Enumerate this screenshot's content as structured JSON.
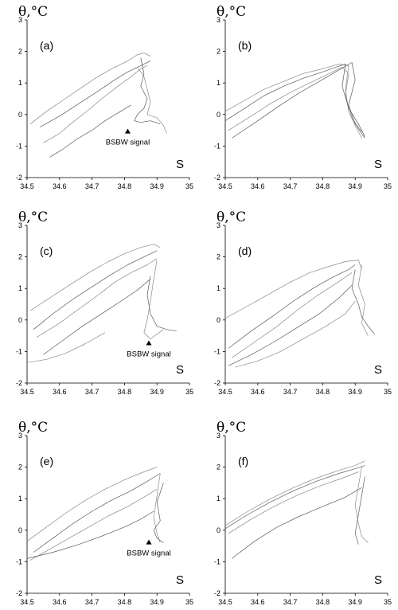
{
  "chart_data": [
    {
      "type": "line",
      "panel_label": "(a)",
      "ylabel": "θ,°C",
      "xlabel": "S",
      "xlim": [
        34.5,
        35.0
      ],
      "ylim": [
        -2,
        3
      ],
      "xticks": [
        "34.5",
        "34.6",
        "34.7",
        "34.8",
        "34.9",
        "35"
      ],
      "yticks": [
        "-2",
        "-1",
        "0",
        "1",
        "2",
        "3"
      ],
      "annotation": {
        "text": "BSBW signal",
        "x": 34.81,
        "y": -0.45
      },
      "series": [
        {
          "x": [
            34.51,
            34.56,
            34.61,
            34.66,
            34.71,
            34.76,
            34.81,
            34.84,
            34.86,
            34.88
          ],
          "y": [
            -0.3,
            0.1,
            0.45,
            0.8,
            1.15,
            1.45,
            1.7,
            1.9,
            1.95,
            1.85
          ]
        },
        {
          "x": [
            34.54,
            34.6,
            34.66,
            34.72,
            34.77,
            34.81,
            34.84,
            34.86,
            34.88
          ],
          "y": [
            -0.4,
            -0.05,
            0.35,
            0.75,
            1.1,
            1.35,
            1.5,
            1.6,
            1.7
          ]
        },
        {
          "x": [
            34.55,
            34.6,
            34.64,
            34.69,
            34.73,
            34.78,
            34.82,
            34.85,
            34.87
          ],
          "y": [
            -0.9,
            -0.6,
            -0.25,
            0.15,
            0.5,
            0.9,
            1.2,
            1.45,
            1.55
          ]
        },
        {
          "x": [
            34.57,
            34.61,
            34.65,
            34.7,
            34.74,
            34.78,
            34.82
          ],
          "y": [
            -1.35,
            -1.1,
            -0.8,
            -0.5,
            -0.2,
            0.05,
            0.3
          ]
        },
        {
          "x": [
            34.84,
            34.86,
            34.87,
            34.88,
            34.87,
            34.9,
            34.92,
            34.93
          ],
          "y": [
            1.5,
            1.2,
            0.8,
            0.4,
            0.0,
            -0.1,
            -0.35,
            -0.6
          ]
        },
        {
          "x": [
            34.85,
            34.86,
            34.85,
            34.87,
            34.86,
            34.84,
            34.83,
            34.85,
            34.88,
            34.91
          ],
          "y": [
            1.8,
            1.3,
            0.9,
            0.5,
            0.2,
            0.0,
            -0.2,
            -0.25,
            -0.2,
            -0.3
          ]
        }
      ]
    },
    {
      "type": "line",
      "panel_label": "(b)",
      "ylabel": "θ,°C",
      "xlabel": "S",
      "xlim": [
        34.5,
        35.0
      ],
      "ylim": [
        -2,
        3
      ],
      "xticks": [
        "34.5",
        "34.6",
        "34.7",
        "34.8",
        "34.9",
        "35"
      ],
      "yticks": [
        "-2",
        "-1",
        "0",
        "1",
        "2",
        "3"
      ],
      "series": [
        {
          "x": [
            34.5,
            34.56,
            34.62,
            34.68,
            34.74,
            34.8,
            34.85,
            34.88,
            34.87,
            34.88,
            34.9,
            34.92
          ],
          "y": [
            0.1,
            0.45,
            0.8,
            1.05,
            1.3,
            1.45,
            1.6,
            1.55,
            0.8,
            0.1,
            -0.35,
            -0.75
          ]
        },
        {
          "x": [
            34.5,
            34.56,
            34.62,
            34.68,
            34.74,
            34.8,
            34.84,
            34.87,
            34.86,
            34.88,
            34.91,
            34.93
          ],
          "y": [
            -0.2,
            0.2,
            0.6,
            0.9,
            1.15,
            1.35,
            1.5,
            1.6,
            0.9,
            0.2,
            -0.3,
            -0.7
          ]
        },
        {
          "x": [
            34.51,
            34.58,
            34.64,
            34.7,
            34.76,
            34.81,
            34.86,
            34.88,
            34.87,
            34.89,
            34.92
          ],
          "y": [
            -0.5,
            -0.05,
            0.35,
            0.7,
            1.0,
            1.25,
            1.5,
            1.3,
            0.6,
            -0.1,
            -0.55
          ]
        },
        {
          "x": [
            34.52,
            34.6,
            34.67,
            34.73,
            34.79,
            34.84,
            34.89,
            34.9,
            34.88,
            34.9,
            34.93
          ],
          "y": [
            -0.75,
            -0.2,
            0.3,
            0.7,
            1.05,
            1.35,
            1.65,
            1.1,
            0.3,
            -0.3,
            -0.75
          ]
        }
      ]
    },
    {
      "type": "line",
      "panel_label": "(c)",
      "ylabel": "θ,°C",
      "xlabel": "S",
      "xlim": [
        34.5,
        35.0
      ],
      "ylim": [
        -2,
        3
      ],
      "xticks": [
        "34.5",
        "34.6",
        "34.7",
        "34.8",
        "34.9",
        "35"
      ],
      "yticks": [
        "-2",
        "-1",
        "0",
        "1",
        "2",
        "3"
      ],
      "annotation": {
        "text": "BSBW signal",
        "x": 34.875,
        "y": -0.65
      },
      "series": [
        {
          "x": [
            34.51,
            34.57,
            34.63,
            34.69,
            34.75,
            34.8,
            34.85,
            34.89,
            34.91
          ],
          "y": [
            0.3,
            0.7,
            1.1,
            1.5,
            1.85,
            2.1,
            2.3,
            2.4,
            2.3
          ]
        },
        {
          "x": [
            34.52,
            34.58,
            34.64,
            34.7,
            34.76,
            34.81,
            34.86,
            34.9
          ],
          "y": [
            -0.3,
            0.2,
            0.65,
            1.05,
            1.45,
            1.75,
            2.0,
            2.2
          ]
        },
        {
          "x": [
            34.53,
            34.6,
            34.66,
            34.72,
            34.77,
            34.82,
            34.87,
            34.9
          ],
          "y": [
            -0.55,
            -0.1,
            0.35,
            0.8,
            1.2,
            1.5,
            1.75,
            1.95
          ]
        },
        {
          "x": [
            34.55,
            34.61,
            34.67,
            34.73,
            34.79,
            34.84,
            34.88
          ],
          "y": [
            -1.1,
            -0.65,
            -0.2,
            0.2,
            0.6,
            0.95,
            1.3
          ]
        },
        {
          "x": [
            34.5,
            34.56,
            34.62,
            34.68,
            34.74
          ],
          "y": [
            -1.35,
            -1.25,
            -1.05,
            -0.75,
            -0.4
          ]
        },
        {
          "x": [
            34.88,
            34.87,
            34.88,
            34.9,
            34.93,
            34.96
          ],
          "y": [
            1.4,
            0.8,
            0.2,
            -0.2,
            -0.3,
            -0.35
          ]
        },
        {
          "x": [
            34.9,
            34.89,
            34.88,
            34.87,
            34.86,
            34.88,
            34.92
          ],
          "y": [
            1.9,
            1.3,
            0.6,
            0.0,
            -0.4,
            -0.6,
            -0.3
          ]
        }
      ]
    },
    {
      "type": "line",
      "panel_label": "(d)",
      "ylabel": "θ,°C",
      "xlabel": "S",
      "xlim": [
        34.5,
        35.0
      ],
      "ylim": [
        -2,
        3
      ],
      "xticks": [
        "34.5",
        "34.6",
        "34.7",
        "34.8",
        "34.9",
        "35"
      ],
      "yticks": [
        "-2",
        "-1",
        "0",
        "1",
        "2",
        "3"
      ],
      "series": [
        {
          "x": [
            34.5,
            34.57,
            34.64,
            34.7,
            34.76,
            34.82,
            34.87,
            34.91,
            34.92
          ],
          "y": [
            0.05,
            0.45,
            0.85,
            1.2,
            1.5,
            1.7,
            1.85,
            1.9,
            1.6
          ]
        },
        {
          "x": [
            34.51,
            34.58,
            34.65,
            34.71,
            34.77,
            34.83,
            34.88,
            34.9
          ],
          "y": [
            -0.9,
            -0.35,
            0.15,
            0.6,
            1.0,
            1.35,
            1.6,
            1.75
          ]
        },
        {
          "x": [
            34.52,
            34.59,
            34.66,
            34.72,
            34.78,
            34.84,
            34.89
          ],
          "y": [
            -1.2,
            -0.7,
            -0.2,
            0.3,
            0.75,
            1.15,
            1.5
          ]
        },
        {
          "x": [
            34.51,
            34.58,
            34.65,
            34.72,
            34.79,
            34.85,
            34.89
          ],
          "y": [
            -1.45,
            -1.1,
            -0.7,
            -0.25,
            0.2,
            0.7,
            1.1
          ]
        },
        {
          "x": [
            34.53,
            34.6,
            34.67,
            34.74,
            34.81,
            34.87,
            34.9
          ],
          "y": [
            -1.5,
            -1.3,
            -1.0,
            -0.6,
            -0.2,
            0.2,
            0.6
          ]
        },
        {
          "x": [
            34.9,
            34.89,
            34.91,
            34.92,
            34.94,
            34.96
          ],
          "y": [
            1.6,
            1.0,
            0.5,
            0.1,
            -0.2,
            -0.45
          ]
        },
        {
          "x": [
            34.92,
            34.91,
            34.93,
            34.92,
            34.94
          ],
          "y": [
            1.75,
            1.1,
            0.5,
            -0.1,
            -0.5
          ]
        }
      ]
    },
    {
      "type": "line",
      "panel_label": "(e)",
      "ylabel": "θ,°C",
      "xlabel": "S",
      "xlim": [
        34.5,
        35.0
      ],
      "ylim": [
        -2,
        3
      ],
      "xticks": [
        "34.5",
        "34.6",
        "34.7",
        "34.8",
        "34.9",
        "35"
      ],
      "yticks": [
        "-2",
        "-1",
        "0",
        "1",
        "2",
        "3"
      ],
      "annotation": {
        "text": "BSBW signal",
        "x": 34.875,
        "y": -0.3
      },
      "series": [
        {
          "x": [
            34.5,
            34.56,
            34.62,
            34.68,
            34.74,
            34.8,
            34.86,
            34.9
          ],
          "y": [
            -0.35,
            0.1,
            0.55,
            0.95,
            1.3,
            1.6,
            1.85,
            2.0
          ]
        },
        {
          "x": [
            34.52,
            34.58,
            34.64,
            34.7,
            34.76,
            34.82,
            34.87,
            34.91
          ],
          "y": [
            -0.7,
            -0.25,
            0.2,
            0.6,
            0.95,
            1.25,
            1.55,
            1.8
          ]
        },
        {
          "x": [
            34.51,
            34.57,
            34.63,
            34.69,
            34.75,
            34.81,
            34.86,
            34.9
          ],
          "y": [
            -0.95,
            -0.6,
            -0.25,
            0.1,
            0.45,
            0.75,
            1.05,
            1.3
          ]
        },
        {
          "x": [
            34.5,
            34.58,
            34.66,
            34.74,
            34.8,
            34.85,
            34.89
          ],
          "y": [
            -0.9,
            -0.7,
            -0.45,
            -0.15,
            0.1,
            0.35,
            0.6
          ]
        },
        {
          "x": [
            34.91,
            34.9,
            34.89,
            34.9,
            34.91
          ],
          "y": [
            1.8,
            1.1,
            0.4,
            -0.1,
            -0.4
          ]
        },
        {
          "x": [
            34.92,
            34.9,
            34.91,
            34.89,
            34.9,
            34.92
          ],
          "y": [
            1.5,
            0.9,
            0.3,
            0.0,
            -0.25,
            -0.4
          ]
        }
      ]
    },
    {
      "type": "line",
      "panel_label": "(f)",
      "ylabel": "θ,°C",
      "xlabel": "S",
      "xlim": [
        34.5,
        35.0
      ],
      "ylim": [
        -2,
        3
      ],
      "xticks": [
        "34.5",
        "34.6",
        "34.7",
        "34.8",
        "34.9",
        "35"
      ],
      "yticks": [
        "-2",
        "-1",
        "0",
        "1",
        "2",
        "3"
      ],
      "series": [
        {
          "x": [
            34.5,
            34.57,
            34.64,
            34.71,
            34.78,
            34.85,
            34.9,
            34.93
          ],
          "y": [
            0.15,
            0.6,
            1.0,
            1.35,
            1.65,
            1.9,
            2.05,
            2.2
          ]
        },
        {
          "x": [
            34.5,
            34.57,
            34.64,
            34.71,
            34.78,
            34.85,
            34.9,
            34.93
          ],
          "y": [
            0.05,
            0.5,
            0.9,
            1.25,
            1.55,
            1.8,
            1.95,
            2.05
          ]
        },
        {
          "x": [
            34.51,
            34.58,
            34.65,
            34.72,
            34.79,
            34.86,
            34.91
          ],
          "y": [
            -0.1,
            0.35,
            0.75,
            1.1,
            1.4,
            1.65,
            1.85
          ]
        },
        {
          "x": [
            34.52,
            34.59,
            34.66,
            34.73,
            34.8,
            34.87,
            34.92
          ],
          "y": [
            -0.9,
            -0.35,
            0.1,
            0.45,
            0.75,
            1.05,
            1.35
          ]
        },
        {
          "x": [
            34.92,
            34.91,
            34.9,
            34.91,
            34.92,
            34.94
          ],
          "y": [
            2.0,
            1.4,
            0.8,
            0.2,
            -0.2,
            -0.4
          ]
        },
        {
          "x": [
            34.93,
            34.92,
            34.91,
            34.9,
            34.91
          ],
          "y": [
            1.7,
            1.1,
            0.5,
            -0.1,
            -0.45
          ]
        }
      ]
    }
  ]
}
